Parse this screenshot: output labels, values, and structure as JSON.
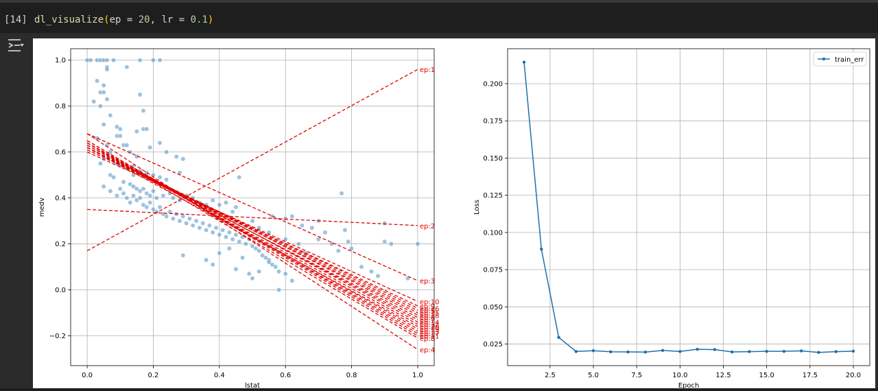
{
  "cell": {
    "execution_count": "[14]",
    "code_fn": "dl_visualize",
    "code_args_a": "ep = ",
    "code_num_a": "20",
    "code_args_b": ", lr = ",
    "code_num_b": "0.1",
    "output_icon": "output-toggle-icon"
  },
  "colors": {
    "scatter": "#5b9bc8",
    "fit_lines": "#e00000",
    "loss_line": "#1f6fa8",
    "page_bg": "#1e1e1e"
  },
  "chart_data": [
    {
      "type": "scatter",
      "xlabel": "lstat",
      "ylabel": "medv",
      "xlim": [
        -0.05,
        1.05
      ],
      "ylim": [
        -0.33,
        1.05
      ],
      "xticks": [
        0.0,
        0.2,
        0.4,
        0.6,
        0.8,
        1.0
      ],
      "xtick_labels": [
        "0.0",
        "0.2",
        "0.4",
        "0.6",
        "0.8",
        "1.0"
      ],
      "yticks": [
        -0.2,
        0.0,
        0.2,
        0.4,
        0.6,
        0.8,
        1.0
      ],
      "ytick_labels": [
        "−0.2",
        "0.0",
        "0.2",
        "0.4",
        "0.6",
        "0.8",
        "1.0"
      ],
      "grid": true,
      "points": [
        [
          0.0,
          1.0
        ],
        [
          0.01,
          1.0
        ],
        [
          0.03,
          1.0
        ],
        [
          0.04,
          1.0
        ],
        [
          0.05,
          1.0
        ],
        [
          0.06,
          1.0
        ],
        [
          0.08,
          1.0
        ],
        [
          0.16,
          1.0
        ],
        [
          0.2,
          1.0
        ],
        [
          0.22,
          1.0
        ],
        [
          0.06,
          0.97
        ],
        [
          0.12,
          0.97
        ],
        [
          0.06,
          0.96
        ],
        [
          0.03,
          0.91
        ],
        [
          0.05,
          0.89
        ],
        [
          0.04,
          0.86
        ],
        [
          0.05,
          0.86
        ],
        [
          0.16,
          0.85
        ],
        [
          0.06,
          0.83
        ],
        [
          0.02,
          0.82
        ],
        [
          0.04,
          0.8
        ],
        [
          0.17,
          0.78
        ],
        [
          0.07,
          0.76
        ],
        [
          0.05,
          0.72
        ],
        [
          0.09,
          0.71
        ],
        [
          0.1,
          0.7
        ],
        [
          0.15,
          0.69
        ],
        [
          0.17,
          0.7
        ],
        [
          0.18,
          0.7
        ],
        [
          0.09,
          0.67
        ],
        [
          0.1,
          0.67
        ],
        [
          0.22,
          0.64
        ],
        [
          0.03,
          0.66
        ],
        [
          0.06,
          0.63
        ],
        [
          0.11,
          0.63
        ],
        [
          0.12,
          0.63
        ],
        [
          0.19,
          0.62
        ],
        [
          0.13,
          0.6
        ],
        [
          0.15,
          0.58
        ],
        [
          0.27,
          0.58
        ],
        [
          0.07,
          0.6
        ],
        [
          0.05,
          0.57
        ],
        [
          0.04,
          0.55
        ],
        [
          0.09,
          0.55
        ],
        [
          0.1,
          0.54
        ],
        [
          0.12,
          0.53
        ],
        [
          0.14,
          0.54
        ],
        [
          0.16,
          0.52
        ],
        [
          0.18,
          0.51
        ],
        [
          0.2,
          0.5
        ],
        [
          0.22,
          0.49
        ],
        [
          0.24,
          0.48
        ],
        [
          0.29,
          0.57
        ],
        [
          0.07,
          0.5
        ],
        [
          0.08,
          0.49
        ],
        [
          0.11,
          0.47
        ],
        [
          0.13,
          0.46
        ],
        [
          0.14,
          0.45
        ],
        [
          0.15,
          0.44
        ],
        [
          0.16,
          0.43
        ],
        [
          0.17,
          0.44
        ],
        [
          0.18,
          0.42
        ],
        [
          0.19,
          0.41
        ],
        [
          0.2,
          0.43
        ],
        [
          0.21,
          0.4
        ],
        [
          0.23,
          0.41
        ],
        [
          0.25,
          0.42
        ],
        [
          0.26,
          0.4
        ],
        [
          0.28,
          0.39
        ],
        [
          0.3,
          0.41
        ],
        [
          0.32,
          0.4
        ],
        [
          0.34,
          0.38
        ],
        [
          0.36,
          0.37
        ],
        [
          0.38,
          0.39
        ],
        [
          0.4,
          0.37
        ],
        [
          0.42,
          0.38
        ],
        [
          0.44,
          0.34
        ],
        [
          0.45,
          0.36
        ],
        [
          0.05,
          0.45
        ],
        [
          0.07,
          0.43
        ],
        [
          0.09,
          0.41
        ],
        [
          0.1,
          0.44
        ],
        [
          0.11,
          0.42
        ],
        [
          0.12,
          0.4
        ],
        [
          0.13,
          0.38
        ],
        [
          0.14,
          0.41
        ],
        [
          0.15,
          0.39
        ],
        [
          0.16,
          0.4
        ],
        [
          0.17,
          0.37
        ],
        [
          0.18,
          0.36
        ],
        [
          0.19,
          0.38
        ],
        [
          0.2,
          0.35
        ],
        [
          0.21,
          0.34
        ],
        [
          0.22,
          0.36
        ],
        [
          0.23,
          0.33
        ],
        [
          0.24,
          0.32
        ],
        [
          0.25,
          0.34
        ],
        [
          0.26,
          0.31
        ],
        [
          0.27,
          0.33
        ],
        [
          0.28,
          0.3
        ],
        [
          0.29,
          0.32
        ],
        [
          0.3,
          0.29
        ],
        [
          0.31,
          0.31
        ],
        [
          0.32,
          0.28
        ],
        [
          0.33,
          0.3
        ],
        [
          0.34,
          0.27
        ],
        [
          0.35,
          0.29
        ],
        [
          0.36,
          0.26
        ],
        [
          0.37,
          0.28
        ],
        [
          0.38,
          0.25
        ],
        [
          0.39,
          0.27
        ],
        [
          0.4,
          0.24
        ],
        [
          0.41,
          0.26
        ],
        [
          0.42,
          0.23
        ],
        [
          0.43,
          0.25
        ],
        [
          0.44,
          0.22
        ],
        [
          0.45,
          0.24
        ],
        [
          0.46,
          0.21
        ],
        [
          0.47,
          0.23
        ],
        [
          0.48,
          0.2
        ],
        [
          0.49,
          0.22
        ],
        [
          0.5,
          0.19
        ],
        [
          0.51,
          0.18
        ],
        [
          0.52,
          0.17
        ],
        [
          0.53,
          0.15
        ],
        [
          0.54,
          0.14
        ],
        [
          0.55,
          0.13
        ],
        [
          0.56,
          0.11
        ],
        [
          0.57,
          0.1
        ],
        [
          0.58,
          0.08
        ],
        [
          0.6,
          0.07
        ],
        [
          0.29,
          0.15
        ],
        [
          0.36,
          0.13
        ],
        [
          0.38,
          0.11
        ],
        [
          0.4,
          0.16
        ],
        [
          0.43,
          0.18
        ],
        [
          0.45,
          0.09
        ],
        [
          0.47,
          0.14
        ],
        [
          0.49,
          0.07
        ],
        [
          0.5,
          0.05
        ],
        [
          0.52,
          0.08
        ],
        [
          0.55,
          0.12
        ],
        [
          0.58,
          0.0
        ],
        [
          0.62,
          0.04
        ],
        [
          0.46,
          0.49
        ],
        [
          0.14,
          0.5
        ],
        [
          0.24,
          0.6
        ],
        [
          0.28,
          0.51
        ],
        [
          0.5,
          0.3
        ],
        [
          0.56,
          0.32
        ],
        [
          0.6,
          0.31
        ],
        [
          0.62,
          0.32
        ],
        [
          0.65,
          0.28
        ],
        [
          0.68,
          0.27
        ],
        [
          0.7,
          0.22
        ],
        [
          0.72,
          0.25
        ],
        [
          0.74,
          0.2
        ],
        [
          0.76,
          0.17
        ],
        [
          0.79,
          0.21
        ],
        [
          0.8,
          0.18
        ],
        [
          0.83,
          0.1
        ],
        [
          0.86,
          0.08
        ],
        [
          0.88,
          0.06
        ],
        [
          0.9,
          0.29
        ],
        [
          0.9,
          0.21
        ],
        [
          0.92,
          0.2
        ],
        [
          1.0,
          0.2
        ],
        [
          0.97,
          0.05
        ],
        [
          0.77,
          0.42
        ],
        [
          0.78,
          0.26
        ],
        [
          0.7,
          0.3
        ],
        [
          0.55,
          0.25
        ],
        [
          0.52,
          0.27
        ],
        [
          0.6,
          0.22
        ],
        [
          0.64,
          0.2
        ],
        [
          0.66,
          0.16
        ]
      ],
      "fit_lines": [
        {
          "label": "ep:1",
          "y0": 0.17,
          "y1": 0.96
        },
        {
          "label": "ep:2",
          "y0": 0.35,
          "y1": 0.28
        },
        {
          "label": "ep:3",
          "y0": 0.68,
          "y1": 0.04
        },
        {
          "label": "ep:4",
          "y0": 0.68,
          "y1": -0.26
        },
        {
          "label": "ep:5",
          "y0": 0.62,
          "y1": -0.09
        },
        {
          "label": "ep:6",
          "y0": 0.62,
          "y1": -0.12
        },
        {
          "label": "ep:7",
          "y0": 0.63,
          "y1": -0.13
        },
        {
          "label": "ep:8",
          "y0": 0.64,
          "y1": -0.21
        },
        {
          "label": "ep:9",
          "y0": 0.61,
          "y1": -0.07
        },
        {
          "label": "ep:10",
          "y0": 0.6,
          "y1": -0.05
        },
        {
          "label": "ep:11",
          "y0": 0.65,
          "y1": -0.2
        },
        {
          "label": "ep:12",
          "y0": 0.63,
          "y1": -0.15
        },
        {
          "label": "ep:13",
          "y0": 0.64,
          "y1": -0.18
        },
        {
          "label": "ep:14",
          "y0": 0.64,
          "y1": -0.14
        },
        {
          "label": "ep:15",
          "y0": 0.62,
          "y1": -0.1
        },
        {
          "label": "ep:16",
          "y0": 0.62,
          "y1": -0.08
        },
        {
          "label": "ep:17",
          "y0": 0.65,
          "y1": -0.19
        },
        {
          "label": "ep:18",
          "y0": 0.63,
          "y1": -0.11
        },
        {
          "label": "ep:19",
          "y0": 0.64,
          "y1": -0.17
        },
        {
          "label": "ep:20",
          "y0": 0.62,
          "y1": -0.16
        }
      ]
    },
    {
      "type": "line",
      "xlabel": "Epoch",
      "ylabel": "Loss",
      "xlim": [
        0.05,
        20.95
      ],
      "ylim": [
        0.0105,
        0.2235
      ],
      "xticks": [
        2.5,
        5.0,
        7.5,
        10.0,
        12.5,
        15.0,
        17.5,
        20.0
      ],
      "xtick_labels": [
        "2.5",
        "5.0",
        "7.5",
        "10.0",
        "12.5",
        "15.0",
        "17.5",
        "20.0"
      ],
      "yticks": [
        0.025,
        0.05,
        0.075,
        0.1,
        0.125,
        0.15,
        0.175,
        0.2
      ],
      "ytick_labels": [
        "0.025",
        "0.050",
        "0.075",
        "0.100",
        "0.125",
        "0.150",
        "0.175",
        "0.200"
      ],
      "grid": true,
      "legend_position": "top-right",
      "series": [
        {
          "name": "train_err",
          "x": [
            1,
            2,
            3,
            4,
            5,
            6,
            7,
            8,
            9,
            10,
            11,
            12,
            13,
            14,
            15,
            16,
            17,
            18,
            19,
            20
          ],
          "values": [
            0.2145,
            0.0888,
            0.0295,
            0.02,
            0.0205,
            0.0198,
            0.0197,
            0.0196,
            0.0207,
            0.02,
            0.0215,
            0.0213,
            0.0197,
            0.0199,
            0.0201,
            0.0201,
            0.0204,
            0.0194,
            0.0199,
            0.0202
          ]
        }
      ]
    }
  ]
}
